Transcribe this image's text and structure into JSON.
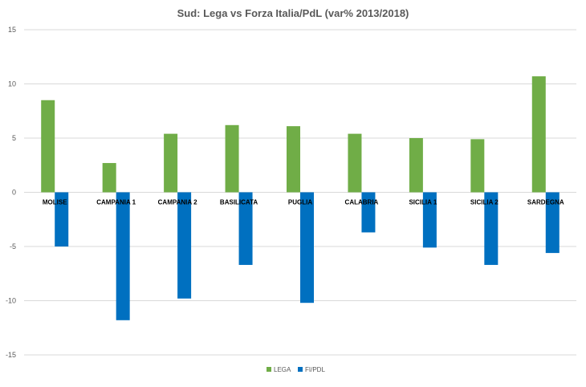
{
  "chart_data": {
    "type": "bar",
    "title": "Sud: Lega vs Forza Italia/PdL (var% 2013/2018)",
    "categories": [
      "MOLISE",
      "CAMPANIA 1",
      "CAMPANIA 2",
      "BASILICATA",
      "PUGLIA",
      "CALABRIA",
      "SICILIA 1",
      "SICILIA 2",
      "SARDEGNA"
    ],
    "series": [
      {
        "name": "LEGA",
        "color": "#70ad47",
        "values": [
          8.5,
          2.7,
          5.4,
          6.2,
          6.1,
          5.4,
          5.0,
          4.9,
          10.7
        ]
      },
      {
        "name": "FI/PDL",
        "color": "#0070c0",
        "values": [
          -5.0,
          -11.8,
          -9.8,
          -6.7,
          -10.2,
          -3.7,
          -5.1,
          -6.7,
          -5.6
        ]
      }
    ],
    "yticks": [
      15,
      10,
      5,
      0,
      -5,
      -10,
      -15
    ],
    "ylim": [
      -15,
      15
    ],
    "grid": true,
    "legend": "bottom"
  }
}
